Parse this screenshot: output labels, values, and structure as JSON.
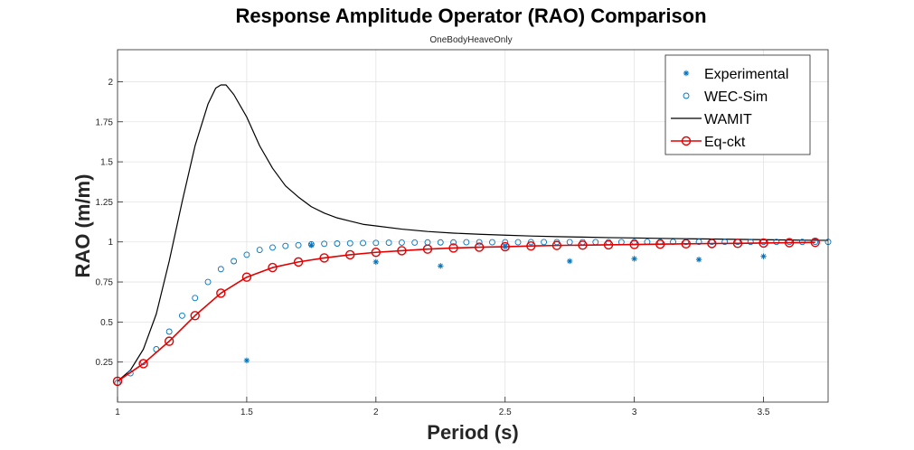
{
  "chart_data": {
    "type": "line",
    "title": "Response Amplitude Operator (RAO) Comparison",
    "subtitle": "OneBodyHeaveOnly",
    "xlabel": "Period (s)",
    "ylabel": "RAO (m/m)",
    "xlim": [
      1,
      3.75
    ],
    "ylim": [
      0,
      2.2
    ],
    "x_ticks": [
      1,
      1.5,
      2,
      2.5,
      3,
      3.5
    ],
    "x_tick_labels": [
      "1",
      "1.5",
      "2",
      "2.5",
      "3",
      "3.5"
    ],
    "y_ticks": [
      0.25,
      0.5,
      0.75,
      1,
      1.25,
      1.5,
      1.75,
      2
    ],
    "y_tick_labels": [
      "0.25",
      "0.5",
      "0.75",
      "1",
      "1.25",
      "1.5",
      "1.75",
      "2"
    ],
    "grid": true,
    "legend_position": "top-right",
    "series": [
      {
        "name": "Experimental",
        "marker": "asterisk",
        "color": "#0072BD",
        "x": [
          1.5,
          1.75,
          2.0,
          2.25,
          2.5,
          2.75,
          3.0,
          3.25,
          3.5
        ],
        "y": [
          0.26,
          0.98,
          0.875,
          0.85,
          0.97,
          0.88,
          0.895,
          0.89,
          0.91
        ]
      },
      {
        "name": "WEC-Sim",
        "marker": "circle",
        "color": "#0072BD",
        "x": [
          1.0,
          1.05,
          1.1,
          1.15,
          1.2,
          1.25,
          1.3,
          1.35,
          1.4,
          1.45,
          1.5,
          1.55,
          1.6,
          1.65,
          1.7,
          1.75,
          1.8,
          1.85,
          1.9,
          1.95,
          2.0,
          2.05,
          2.1,
          2.15,
          2.2,
          2.25,
          2.3,
          2.35,
          2.4,
          2.45,
          2.5,
          2.55,
          2.6,
          2.65,
          2.7,
          2.75,
          2.8,
          2.85,
          2.9,
          2.95,
          3.0,
          3.05,
          3.1,
          3.15,
          3.2,
          3.25,
          3.3,
          3.35,
          3.4,
          3.45,
          3.5,
          3.55,
          3.6,
          3.65,
          3.7,
          3.75
        ],
        "y": [
          0.12,
          0.18,
          0.25,
          0.33,
          0.44,
          0.54,
          0.65,
          0.75,
          0.83,
          0.88,
          0.92,
          0.95,
          0.965,
          0.975,
          0.98,
          0.985,
          0.988,
          0.99,
          0.992,
          0.993,
          0.994,
          0.995,
          0.996,
          0.996,
          0.997,
          0.997,
          0.997,
          0.998,
          0.998,
          0.998,
          0.998,
          0.998,
          0.999,
          0.999,
          0.999,
          0.999,
          0.999,
          0.999,
          0.999,
          0.999,
          1.0,
          1.0,
          1.0,
          1.0,
          1.0,
          1.0,
          1.0,
          1.0,
          1.0,
          1.0,
          1.0,
          1.0,
          1.0,
          1.0,
          1.0,
          1.0
        ]
      },
      {
        "name": "WAMIT",
        "marker": "none",
        "color": "#000000",
        "x": [
          1.0,
          1.05,
          1.1,
          1.15,
          1.2,
          1.25,
          1.3,
          1.35,
          1.38,
          1.4,
          1.42,
          1.45,
          1.5,
          1.55,
          1.6,
          1.65,
          1.7,
          1.75,
          1.8,
          1.85,
          1.9,
          1.95,
          2.0,
          2.1,
          2.2,
          2.3,
          2.4,
          2.5,
          2.6,
          2.7,
          2.8,
          2.9,
          3.0,
          3.1,
          3.2,
          3.3,
          3.4,
          3.5,
          3.6,
          3.7,
          3.75
        ],
        "y": [
          0.13,
          0.2,
          0.33,
          0.55,
          0.88,
          1.25,
          1.6,
          1.86,
          1.96,
          1.98,
          1.98,
          1.92,
          1.78,
          1.6,
          1.46,
          1.35,
          1.28,
          1.22,
          1.18,
          1.15,
          1.13,
          1.11,
          1.1,
          1.08,
          1.065,
          1.055,
          1.048,
          1.042,
          1.037,
          1.033,
          1.03,
          1.027,
          1.025,
          1.022,
          1.02,
          1.018,
          1.016,
          1.014,
          1.012,
          1.01,
          1.01
        ]
      },
      {
        "name": "Eq-ckt",
        "marker": "circle",
        "color": "#E30000",
        "x": [
          1.0,
          1.1,
          1.2,
          1.3,
          1.4,
          1.5,
          1.6,
          1.7,
          1.8,
          1.9,
          2.0,
          2.1,
          2.2,
          2.3,
          2.4,
          2.5,
          2.6,
          2.7,
          2.8,
          2.9,
          3.0,
          3.1,
          3.2,
          3.3,
          3.4,
          3.5,
          3.6,
          3.7
        ],
        "y": [
          0.13,
          0.24,
          0.38,
          0.54,
          0.68,
          0.78,
          0.84,
          0.875,
          0.9,
          0.92,
          0.935,
          0.945,
          0.955,
          0.962,
          0.967,
          0.97,
          0.975,
          0.978,
          0.98,
          0.982,
          0.984,
          0.986,
          0.988,
          0.99,
          0.991,
          0.993,
          0.995,
          0.997
        ]
      }
    ]
  }
}
